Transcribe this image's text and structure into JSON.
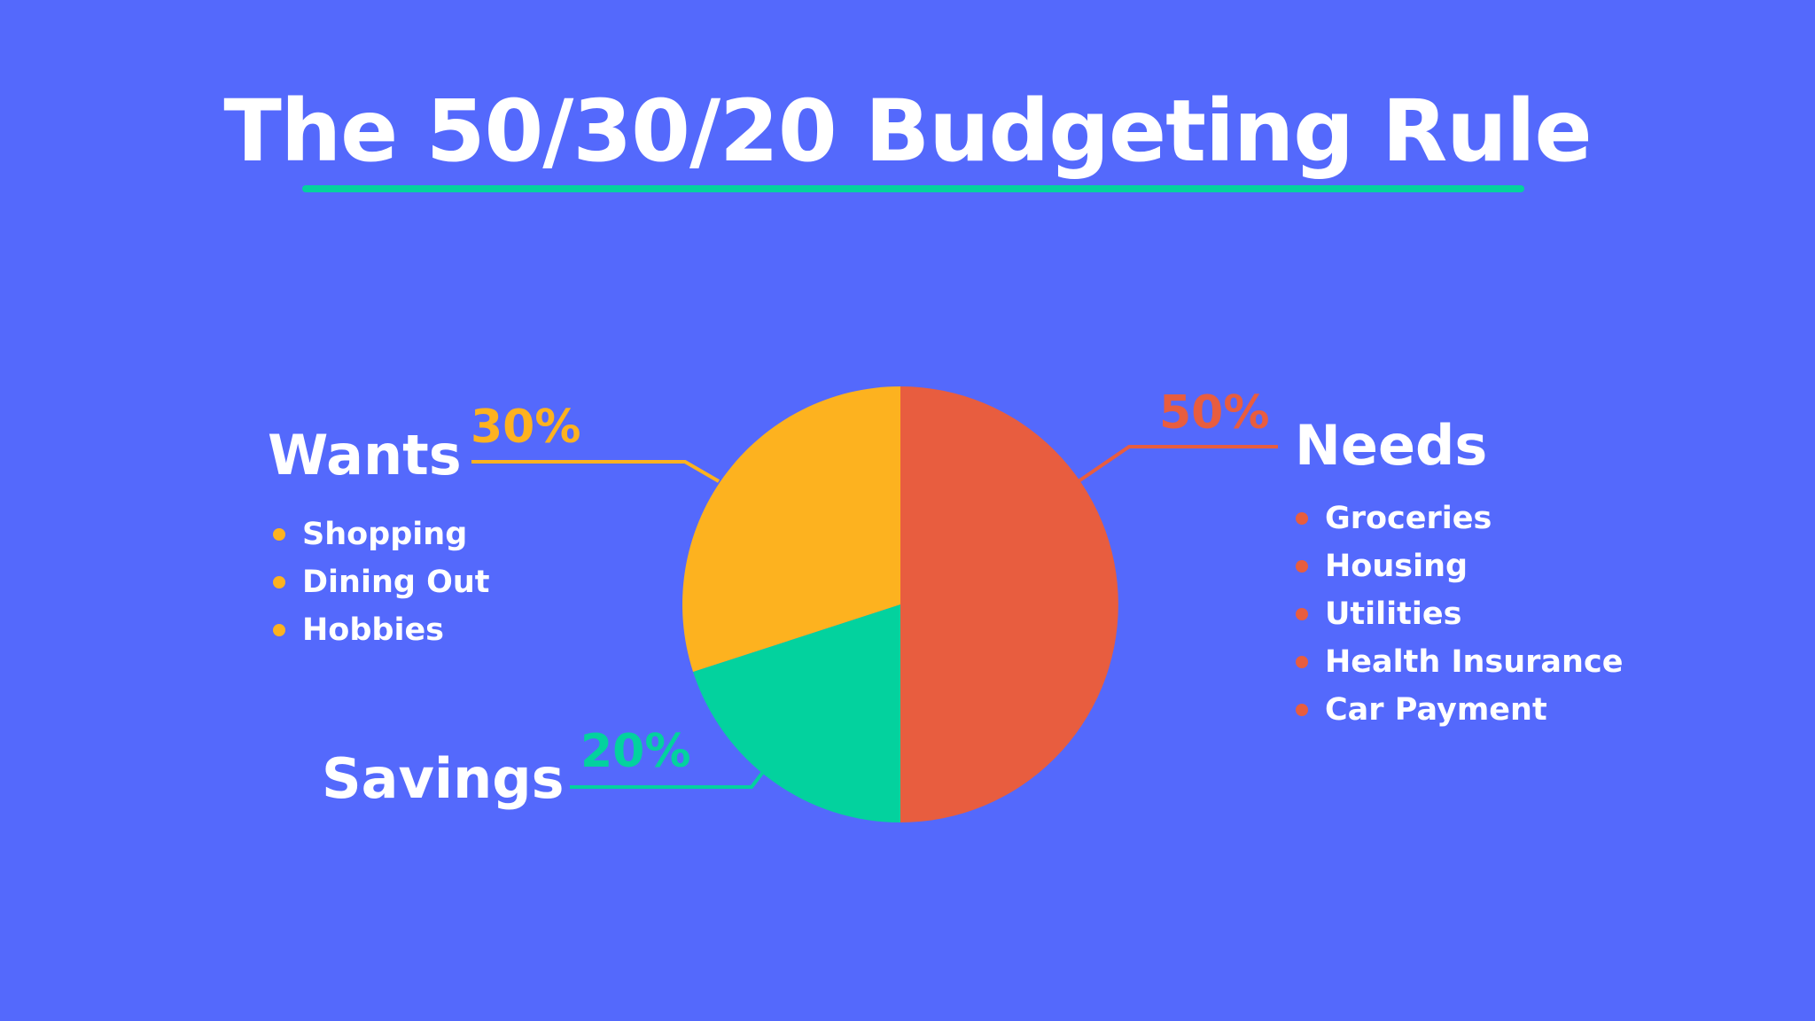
{
  "background_color": "#5469FC",
  "accent_color": "#03D29E",
  "title": "The 50/30/20 Budgeting Rule",
  "chart_data": {
    "type": "pie",
    "title": "The 50/30/20 Budgeting Rule",
    "slices": [
      {
        "name": "Needs",
        "value": 50,
        "label": "50%",
        "color": "#E85D3F"
      },
      {
        "name": "Savings",
        "value": 20,
        "label": "20%",
        "color": "#03D29E"
      },
      {
        "name": "Wants",
        "value": 30,
        "label": "30%",
        "color": "#FDB21F"
      }
    ]
  },
  "categories": {
    "needs": {
      "title": "Needs",
      "percent": "50%",
      "color": "#E85D3F",
      "items": [
        "Groceries",
        "Housing",
        "Utilities",
        "Health Insurance",
        "Car Payment"
      ]
    },
    "wants": {
      "title": "Wants",
      "percent": "30%",
      "color": "#FDB21F",
      "items": [
        "Shopping",
        "Dining Out",
        "Hobbies"
      ]
    },
    "savings": {
      "title": "Savings",
      "percent": "20%",
      "color": "#03D29E"
    }
  }
}
